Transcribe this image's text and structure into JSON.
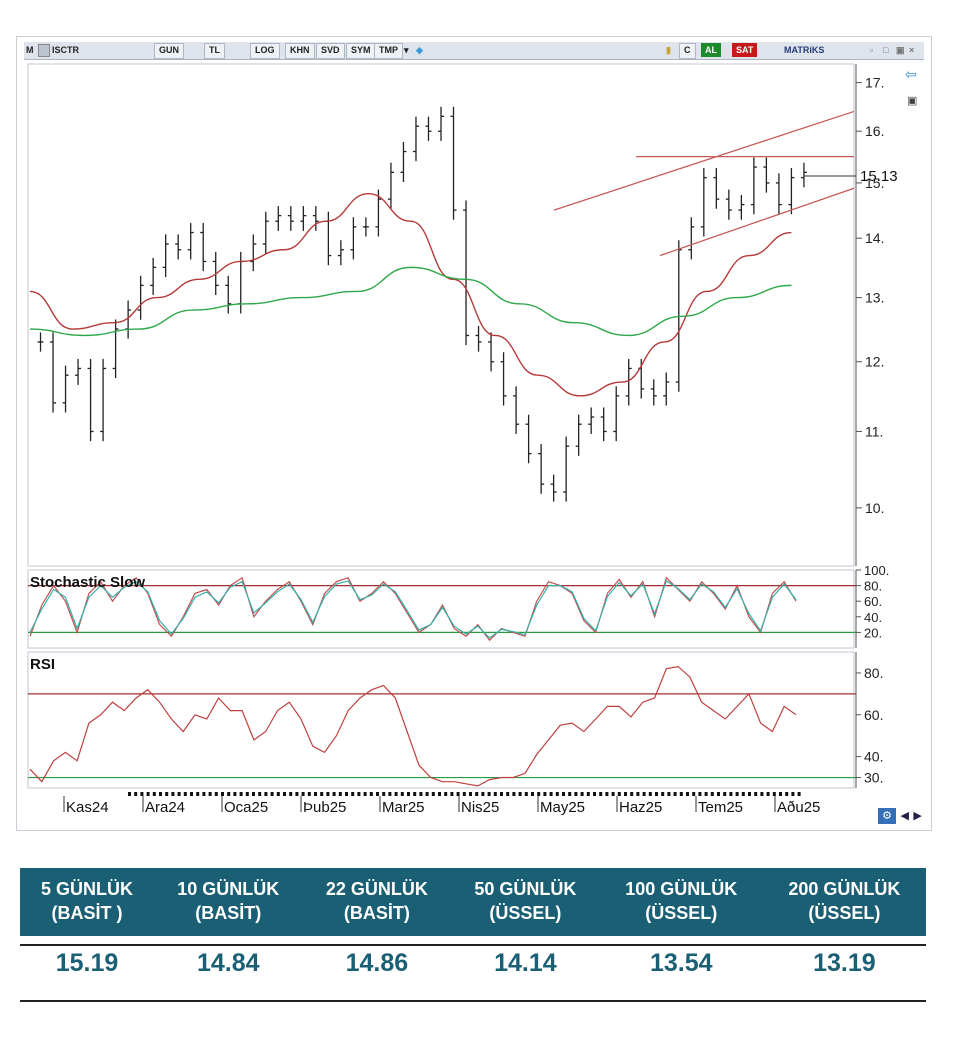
{
  "toolbar": {
    "m_label": "M",
    "symbol": "ISCTR",
    "period": "GUN",
    "currency": "TL",
    "buttons": [
      "LOG",
      "KHN",
      "SVD",
      "SYM",
      "TMP"
    ],
    "c_label": "C",
    "al_label": "AL",
    "sat_label": "SAT",
    "brand": "MATRiKS"
  },
  "chart_data": [
    {
      "type": "ohlc",
      "title": "",
      "x_ticks": [
        "Kas24",
        "Ara24",
        "Oca25",
        "Þub25",
        "Mar25",
        "Nis25",
        "May25",
        "Haz25",
        "Tem25",
        "Aðu25"
      ],
      "y_ticks": [
        10,
        11,
        12,
        13,
        14,
        15,
        16,
        17
      ],
      "y_tick_labels": [
        "10.",
        "11.",
        "12.",
        "13.",
        "14.",
        "15.",
        "16.",
        "17."
      ],
      "ylim": [
        9.3,
        17.4
      ],
      "last_price_label": "15.13",
      "log_scale": true,
      "grid": false,
      "series": [
        {
          "name": "",
          "color": "#222222",
          "description": "daily bars",
          "values": [
            12.3,
            11.4,
            11.8,
            11.9,
            11.0,
            11.9,
            12.5,
            12.8,
            13.2,
            13.5,
            13.9,
            13.8,
            14.1,
            13.6,
            13.2,
            12.9,
            13.6,
            13.9,
            14.3,
            14.4,
            14.3,
            14.4,
            14.3,
            13.7,
            13.8,
            14.2,
            14.2,
            14.7,
            15.2,
            15.6,
            16.1,
            16.0,
            16.3,
            14.5,
            12.4,
            12.3,
            12.0,
            11.5,
            11.1,
            10.7,
            10.3,
            10.2,
            10.8,
            11.1,
            11.2,
            11.0,
            11.5,
            11.9,
            11.6,
            11.5,
            11.7,
            13.8,
            14.2,
            15.1,
            14.7,
            14.5,
            14.6,
            15.3,
            15.0,
            14.6,
            15.1,
            15.2
          ]
        },
        {
          "name": "",
          "color": "#b73a3a",
          "description": "moving average (red)",
          "values": [
            13.1,
            12.5,
            12.6,
            13.0,
            13.3,
            13.6,
            13.8,
            14.3,
            14.8,
            14.3,
            13.3,
            12.4,
            11.8,
            11.5,
            11.7,
            12.3,
            13.1,
            13.7,
            14.1
          ]
        },
        {
          "name": "",
          "color": "#2ea84a",
          "description": "moving average (green)",
          "values": [
            12.5,
            12.4,
            12.5,
            12.8,
            12.9,
            13.0,
            13.1,
            13.5,
            13.3,
            12.9,
            12.6,
            12.4,
            12.7,
            13.0,
            13.2
          ]
        }
      ],
      "trendlines": [
        {
          "color": "#c75a5a",
          "from": [
            "Mar25+",
            14.5
          ],
          "to": [
            "Aðu25+",
            16.4
          ]
        },
        {
          "color": "#c75a5a",
          "from": [
            "Tem25-",
            13.7
          ],
          "to": [
            "Aðu25+",
            14.9
          ]
        },
        {
          "color": "#c75a5a",
          "from": [
            "Haz25+",
            15.5
          ],
          "to": [
            "Aðu25+",
            15.5
          ]
        }
      ]
    },
    {
      "type": "line",
      "title": "Stochastic Slow",
      "y_ticks": [
        20,
        40,
        60,
        80,
        100
      ],
      "y_tick_labels": [
        "20.",
        "40.",
        "60.",
        "80.",
        "100."
      ],
      "ylim": [
        0,
        100
      ],
      "reference_lines": [
        {
          "value": 80,
          "color": "#a03030"
        },
        {
          "value": 20,
          "color": "#2a9a40"
        }
      ],
      "series": [
        {
          "name": "",
          "color": "#c05050",
          "values": [
            15,
            55,
            80,
            60,
            20,
            70,
            85,
            60,
            80,
            90,
            70,
            30,
            15,
            40,
            70,
            75,
            55,
            80,
            90,
            40,
            60,
            75,
            85,
            60,
            30,
            70,
            85,
            90,
            60,
            70,
            85,
            70,
            45,
            20,
            30,
            55,
            25,
            15,
            30,
            10,
            25,
            20,
            15,
            60,
            85,
            80,
            70,
            35,
            20,
            70,
            88,
            65,
            85,
            40,
            90,
            75,
            60,
            85,
            70,
            50,
            80,
            40,
            20,
            70,
            85,
            60
          ]
        },
        {
          "name": "",
          "color": "#36b0a8",
          "values": [
            20,
            50,
            75,
            65,
            25,
            65,
            80,
            65,
            78,
            85,
            72,
            35,
            18,
            38,
            65,
            72,
            58,
            78,
            85,
            45,
            58,
            72,
            82,
            62,
            33,
            66,
            82,
            86,
            62,
            68,
            82,
            72,
            48,
            23,
            30,
            52,
            28,
            18,
            28,
            13,
            24,
            21,
            17,
            55,
            80,
            80,
            72,
            38,
            22,
            66,
            84,
            67,
            82,
            44,
            86,
            76,
            62,
            82,
            72,
            52,
            76,
            44,
            22,
            65,
            82,
            62
          ]
        }
      ]
    },
    {
      "type": "line",
      "title": "RSI",
      "y_ticks": [
        30,
        40,
        60,
        80
      ],
      "y_tick_labels": [
        "30.",
        "40.",
        "60.",
        "80."
      ],
      "ylim": [
        25,
        90
      ],
      "reference_lines": [
        {
          "value": 70,
          "color": "#a03030"
        },
        {
          "value": 30,
          "color": "#2a9a40"
        }
      ],
      "series": [
        {
          "name": "",
          "color": "#c04040",
          "values": [
            34,
            28,
            38,
            42,
            38,
            56,
            60,
            66,
            62,
            68,
            72,
            66,
            58,
            52,
            60,
            58,
            68,
            62,
            62,
            48,
            52,
            62,
            66,
            58,
            45,
            42,
            50,
            62,
            68,
            72,
            74,
            68,
            52,
            36,
            30,
            28,
            28,
            27,
            26,
            29,
            30,
            30,
            32,
            41,
            48,
            55,
            56,
            52,
            58,
            64,
            64,
            59,
            66,
            68,
            82,
            83,
            78,
            66,
            62,
            58,
            64,
            70,
            56,
            52,
            64,
            60
          ]
        }
      ]
    }
  ],
  "ma_table": {
    "headers": [
      "5 GÜNLÜK\n(BASİT )",
      "10 GÜNLÜK\n(BASİT)",
      "22 GÜNLÜK\n(BASİT)",
      "50 GÜNLÜK\n(ÜSSEL)",
      "100 GÜNLÜK\n(ÜSSEL)",
      "200 GÜNLÜK\n(ÜSSEL)"
    ],
    "values": [
      "15.19",
      "14.84",
      "14.86",
      "14.14",
      "13.54",
      "13.19"
    ]
  },
  "colors": {
    "header_bg": "#1b5f74",
    "value_text": "#1b5f74",
    "price_bars": "#222222",
    "ma_red": "#b73a3a",
    "ma_green": "#2ea84a"
  },
  "icons": [
    "twitter-icon",
    "lock-icon",
    "refresh-icon",
    "minimize-icon",
    "maximize-icon",
    "close-icon",
    "arrow-left-icon",
    "arrow-right-icon",
    "settings-icon"
  ]
}
